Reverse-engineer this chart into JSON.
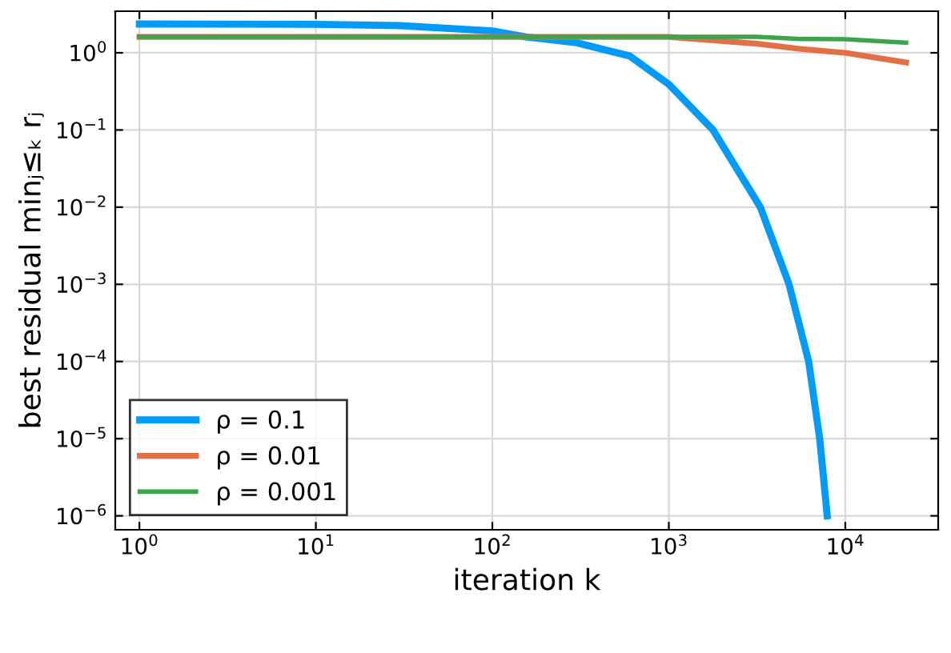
{
  "chart_data": {
    "type": "line",
    "xlabel": "iteration k",
    "ylabel": "best residual minⱼ≤ₖ rⱼ",
    "log": "xy",
    "grid": true,
    "legend": "bottom left",
    "line_style": "solid",
    "marker": "none",
    "xlim": [
      0.73,
      33600
    ],
    "ylim": [
      6.6e-07,
      3.46
    ],
    "xticks": [
      {
        "value": 1,
        "label": "10$^{0}$"
      },
      {
        "value": 10,
        "label": "10$^{1}$"
      },
      {
        "value": 100,
        "label": "10$^{2}$"
      },
      {
        "value": 1000,
        "label": "10$^{3}$"
      },
      {
        "value": 10000,
        "label": "10$^{4}$"
      }
    ],
    "yticks": [
      {
        "value": 1e-06,
        "label": "10$^{−6}$"
      },
      {
        "value": 1e-05,
        "label": "10$^{−5}$"
      },
      {
        "value": 0.0001,
        "label": "10$^{−4}$"
      },
      {
        "value": 0.001,
        "label": "10$^{−3}$"
      },
      {
        "value": 0.01,
        "label": "10$^{−2}$"
      },
      {
        "value": 0.1,
        "label": "10$^{−1}$"
      },
      {
        "value": 1,
        "label": "10$^{0}$"
      }
    ],
    "series": [
      {
        "name": "ρ = 0.1",
        "color": "#009af9",
        "x": [
          1,
          10,
          30,
          100,
          155,
          300,
          600,
          1000,
          1780,
          3300,
          4800,
          6200,
          7160,
          7900
        ],
        "values": [
          2.36,
          2.34,
          2.25,
          1.92,
          1.61,
          1.35,
          0.91,
          0.39,
          0.1,
          0.01,
          0.001,
          0.0001,
          1e-05,
          1e-06
        ]
      },
      {
        "name": "ρ = 0.01",
        "color": "#e26f46",
        "x": [
          1,
          1000,
          3160,
          5620,
          10000,
          22100
        ],
        "values": [
          1.61,
          1.61,
          1.31,
          1.12,
          1.0,
          0.75
        ]
      },
      {
        "name": "ρ = 0.001",
        "color": "#3da44d",
        "x": [
          1,
          3160,
          5620,
          10000,
          22100
        ],
        "values": [
          1.61,
          1.61,
          1.51,
          1.5,
          1.35
        ]
      }
    ]
  }
}
